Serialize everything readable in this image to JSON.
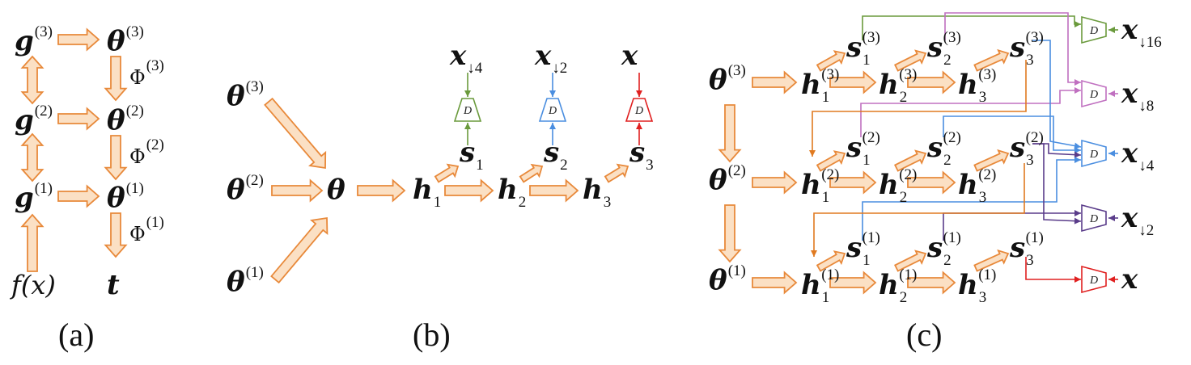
{
  "captions": {
    "a": "(a)",
    "b": "(b)",
    "c": "(c)"
  },
  "disc_label": "D",
  "colors": {
    "arrow_fill": "#fbe0c4",
    "arrow_stroke": "#e8893a",
    "scale16": "#6a9a3c",
    "scale8": "#c070c0",
    "scale4": "#4a8ee0",
    "scale2": "#5a3c8a",
    "scale1": "#e02020",
    "feed": "#e07a20"
  },
  "panel_a": {
    "g": "g",
    "theta": "θ",
    "t": "t",
    "fx": "f(x)",
    "phi": "Φ",
    "levels": [
      "(3)",
      "(2)",
      "(1)"
    ]
  },
  "panel_b": {
    "theta": "θ",
    "levels": [
      "(3)",
      "(2)",
      "(1)"
    ],
    "h": "h",
    "s": "s",
    "x": "x",
    "idx": [
      "1",
      "2",
      "3"
    ],
    "x_subs": [
      "↓4",
      "↓2",
      ""
    ]
  },
  "panel_c": {
    "theta": "θ",
    "h": "h",
    "s": "s",
    "x": "x",
    "levels": [
      "(3)",
      "(2)",
      "(1)"
    ],
    "idx": [
      "1",
      "2",
      "3"
    ],
    "x_subs": [
      "↓16",
      "↓8",
      "↓4",
      "↓2",
      ""
    ]
  }
}
